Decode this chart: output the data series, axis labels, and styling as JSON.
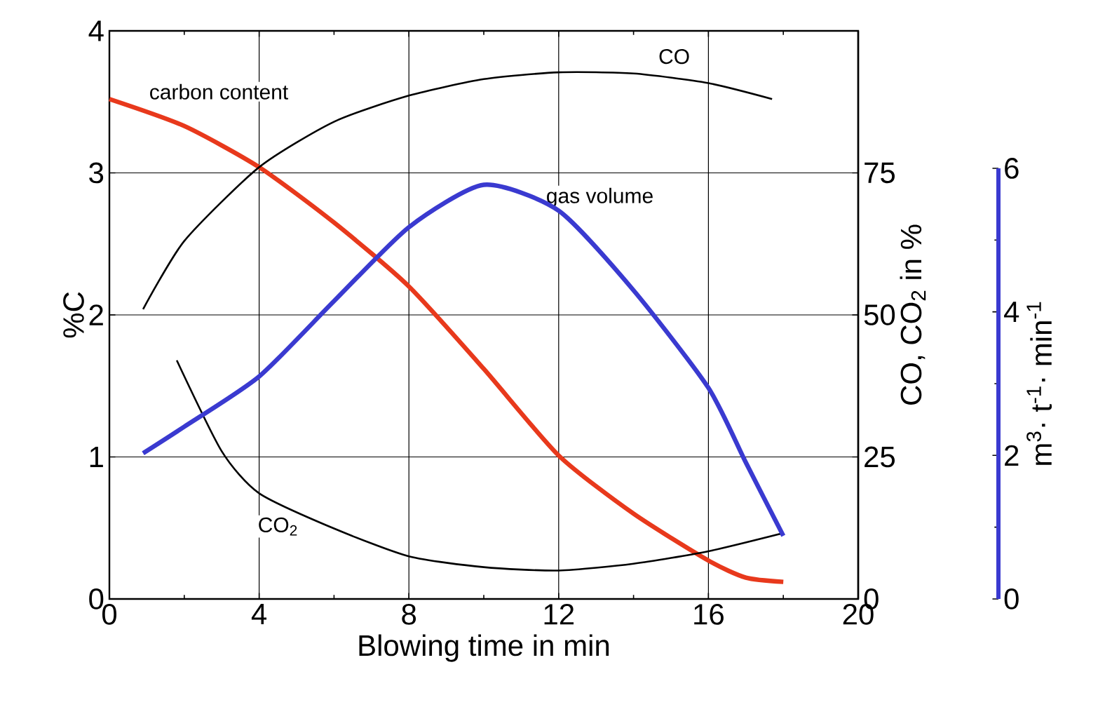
{
  "chart_data": {
    "type": "line",
    "xlabel": "Blowing time in min",
    "ylabel": "%C",
    "y2label": "CO, CO$_{2}$ in %",
    "y3label": "m$^{3}$· t$^{-1}$· min$^{-1}$",
    "xlim": [
      0,
      20
    ],
    "xticks": [
      0,
      4,
      8,
      12,
      16,
      20
    ],
    "ylim": [
      0,
      4
    ],
    "yticks": [
      0,
      1,
      2,
      3,
      4
    ],
    "y2lim": [
      0,
      100
    ],
    "y2ticks": [
      0,
      25,
      50,
      75
    ],
    "y3lim": [
      0,
      6
    ],
    "y3ticks": [
      0,
      2,
      4,
      6
    ],
    "grid": true,
    "series": [
      {
        "name": "carbon content",
        "color": "#e8391c",
        "x": [
          0,
          2,
          4,
          6,
          8,
          10,
          12,
          14,
          16,
          17,
          18
        ],
        "values": [
          3.52,
          3.33,
          3.04,
          2.65,
          2.2,
          1.62,
          1.01,
          0.6,
          0.27,
          0.15,
          0.12
        ]
      },
      {
        "name": "CO",
        "color": "#000000",
        "axis": "y2",
        "x": [
          0.9,
          2,
          4,
          6,
          8,
          10,
          12,
          14,
          16,
          17.7
        ],
        "values": [
          51,
          63,
          76,
          84,
          88.6,
          91.5,
          92.7,
          92.5,
          90.8,
          88
        ]
      },
      {
        "name": "CO$_{2}$",
        "color": "#000000",
        "axis": "y2",
        "x": [
          1.8,
          3,
          4,
          6,
          8,
          10,
          12,
          14,
          16,
          18
        ],
        "values": [
          42,
          26,
          18.6,
          12.4,
          7.5,
          5.6,
          5,
          6.2,
          8.4,
          11.6
        ]
      },
      {
        "name": "gas volume",
        "color": "#3a3ad0",
        "axis": "y3",
        "x": [
          0.9,
          2,
          4,
          6,
          8,
          10,
          12,
          14,
          16,
          17,
          18
        ],
        "values": [
          2.03,
          2.4,
          3.1,
          4.15,
          5.18,
          5.77,
          5.41,
          4.3,
          2.94,
          1.9,
          0.88
        ]
      }
    ]
  }
}
